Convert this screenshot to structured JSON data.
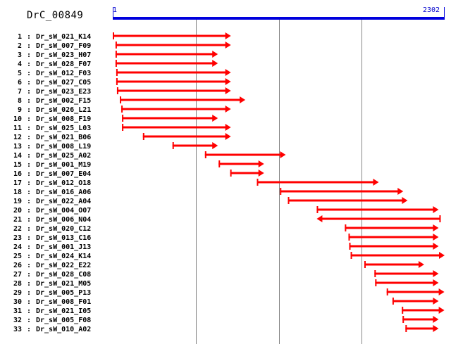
{
  "title": "DrC_00849",
  "scale": {
    "start": 1,
    "end": 2302,
    "start_label": "1",
    "end_label": "2302"
  },
  "colors": {
    "scale": "#0000dd",
    "arrow": "#ff0000",
    "grid": "#888888",
    "text": "#000000"
  },
  "chart_data": {
    "type": "alignment",
    "x_range": [
      1,
      2302
    ],
    "gridlines": [
      576,
      1152,
      1727
    ],
    "reads": [
      {
        "index": "1",
        "name": "Dr_sW_021_K14",
        "start": 1,
        "end": 820,
        "dir": "right"
      },
      {
        "index": "2",
        "name": "Dr_sW_007_F09",
        "start": 20,
        "end": 820,
        "dir": "right"
      },
      {
        "index": "3",
        "name": "Dr_sW_023_H07",
        "start": 20,
        "end": 730,
        "dir": "right"
      },
      {
        "index": "4",
        "name": "Dr_sW_028_F07",
        "start": 20,
        "end": 730,
        "dir": "right"
      },
      {
        "index": "5",
        "name": "Dr_sW_012_F03",
        "start": 25,
        "end": 820,
        "dir": "right"
      },
      {
        "index": "6",
        "name": "Dr_sW_027_C05",
        "start": 25,
        "end": 820,
        "dir": "right"
      },
      {
        "index": "7",
        "name": "Dr_sW_023_E23",
        "start": 30,
        "end": 820,
        "dir": "right"
      },
      {
        "index": "8",
        "name": "Dr_sW_002_F15",
        "start": 50,
        "end": 920,
        "dir": "right"
      },
      {
        "index": "9",
        "name": "Dr_sW_026_L21",
        "start": 60,
        "end": 820,
        "dir": "right"
      },
      {
        "index": "10",
        "name": "Dr_sW_008_F19",
        "start": 65,
        "end": 730,
        "dir": "right"
      },
      {
        "index": "11",
        "name": "Dr_sW_025_L03",
        "start": 65,
        "end": 820,
        "dir": "right"
      },
      {
        "index": "12",
        "name": "Dr_sW_021_B06",
        "start": 210,
        "end": 820,
        "dir": "right"
      },
      {
        "index": "13",
        "name": "Dr_sW_008_L19",
        "start": 415,
        "end": 730,
        "dir": "right"
      },
      {
        "index": "14",
        "name": "Dr_sW_025_A02",
        "start": 640,
        "end": 1200,
        "dir": "right"
      },
      {
        "index": "15",
        "name": "Dr_sW_001_M19",
        "start": 735,
        "end": 1050,
        "dir": "right"
      },
      {
        "index": "16",
        "name": "Dr_sW_007_E04",
        "start": 815,
        "end": 1050,
        "dir": "right"
      },
      {
        "index": "17",
        "name": "Dr_sW_012_O18",
        "start": 1000,
        "end": 1845,
        "dir": "right"
      },
      {
        "index": "18",
        "name": "Dr_sW_016_A06",
        "start": 1160,
        "end": 2015,
        "dir": "right"
      },
      {
        "index": "19",
        "name": "Dr_sW_022_A04",
        "start": 1215,
        "end": 2045,
        "dir": "right"
      },
      {
        "index": "20",
        "name": "Dr_sW_004_O07",
        "start": 1415,
        "end": 2260,
        "dir": "right"
      },
      {
        "index": "21",
        "name": "Dr_sW_006_N04",
        "start": 1415,
        "end": 2270,
        "dir": "left"
      },
      {
        "index": "22",
        "name": "Dr_sW_020_C12",
        "start": 1610,
        "end": 2260,
        "dir": "right"
      },
      {
        "index": "23",
        "name": "Dr_sW_013_C16",
        "start": 1635,
        "end": 2260,
        "dir": "right"
      },
      {
        "index": "24",
        "name": "Dr_sW_001_J13",
        "start": 1640,
        "end": 2260,
        "dir": "right"
      },
      {
        "index": "25",
        "name": "Dr_sW_024_K14",
        "start": 1650,
        "end": 2302,
        "dir": "right"
      },
      {
        "index": "26",
        "name": "Dr_sW_022_E22",
        "start": 1745,
        "end": 2160,
        "dir": "right"
      },
      {
        "index": "27",
        "name": "Dr_sW_028_C08",
        "start": 1815,
        "end": 2260,
        "dir": "right"
      },
      {
        "index": "28",
        "name": "Dr_sW_021_M05",
        "start": 1820,
        "end": 2260,
        "dir": "right"
      },
      {
        "index": "29",
        "name": "Dr_sW_005_P13",
        "start": 1900,
        "end": 2300,
        "dir": "right"
      },
      {
        "index": "30",
        "name": "Dr_sW_008_F01",
        "start": 1940,
        "end": 2260,
        "dir": "right"
      },
      {
        "index": "31",
        "name": "Dr_sW_021_I05",
        "start": 2005,
        "end": 2300,
        "dir": "right"
      },
      {
        "index": "32",
        "name": "Dr_sW_005_F08",
        "start": 2010,
        "end": 2260,
        "dir": "right"
      },
      {
        "index": "33",
        "name": "Dr_sW_010_A02",
        "start": 2030,
        "end": 2260,
        "dir": "right"
      }
    ]
  }
}
